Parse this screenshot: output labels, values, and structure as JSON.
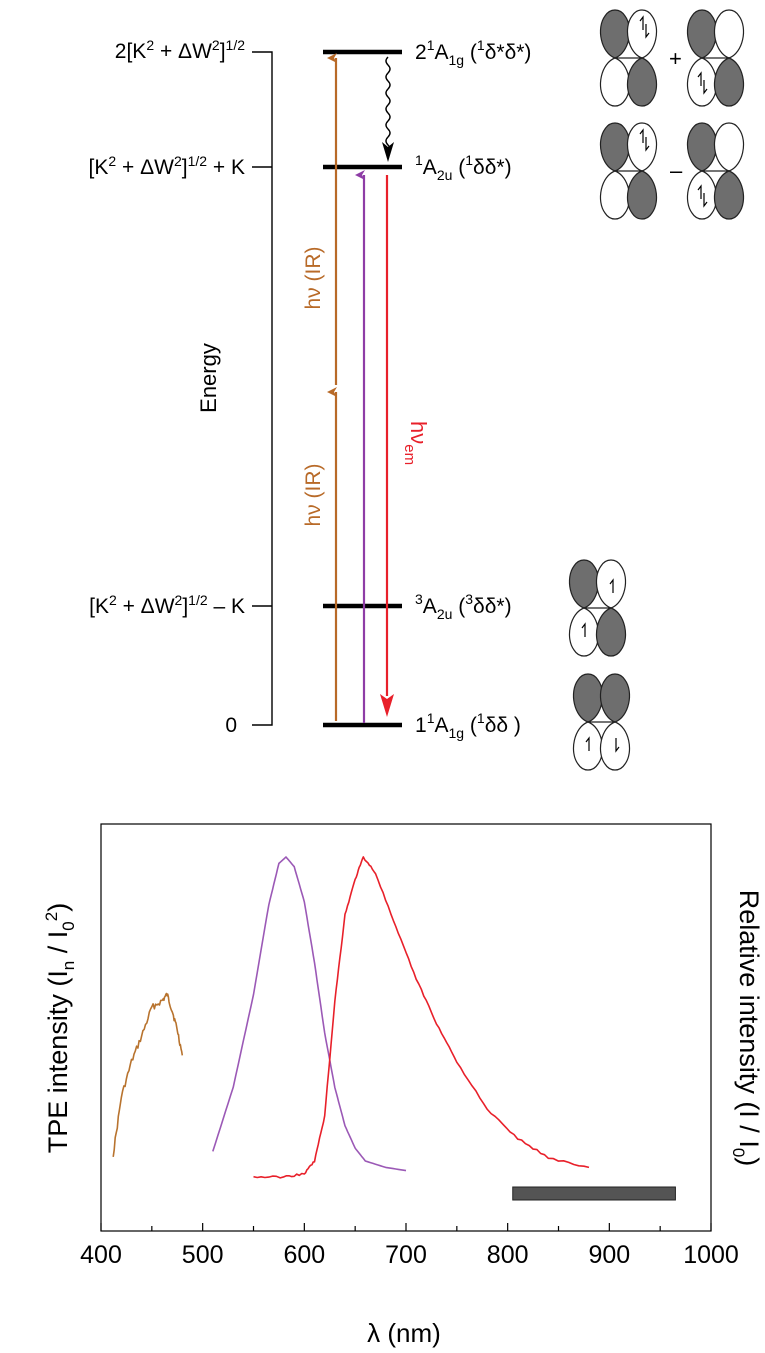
{
  "diagram": {
    "axis_label": "Energy",
    "energy_labels": [
      {
        "id": "e0",
        "text": "2[K² + ΔW²]¹ᐟ²"
      },
      {
        "id": "e1",
        "text": "[K² + ΔW²]¹ᐟ² + K"
      },
      {
        "id": "e2",
        "text": "[K² + ΔW²]¹ᐟ² – K"
      },
      {
        "id": "e3",
        "text": "0"
      }
    ],
    "states": [
      {
        "pre": "2",
        "sup1": "1",
        "main": "A",
        "sub": "1g",
        "open": " (",
        "sup2": "1",
        "config": "δ*δ*)"
      },
      {
        "pre": "",
        "sup1": "1",
        "main": "A",
        "sub": "2u",
        "open": " (",
        "sup2": "1",
        "config": "δδ*)"
      },
      {
        "pre": "",
        "sup1": "3",
        "main": "A",
        "sub": "2u",
        "open": " (",
        "sup2": "3",
        "config": "δδ*)"
      },
      {
        "pre": "1",
        "sup1": "1",
        "main": "A",
        "sub": "1g",
        "open": " (",
        "sup2": "1",
        "config": "δδ )"
      }
    ],
    "excitation_label": "hν (IR)",
    "emission_label_main": "hν",
    "emission_label_sub": "em",
    "operators": {
      "plus": "+",
      "minus": "–"
    },
    "colors": {
      "ir": "#b86a28",
      "absorption": "#8e3da6",
      "emission": "#e8202a",
      "level": "#000000"
    }
  },
  "chart_data": {
    "type": "line",
    "xlabel": "λ (nm)",
    "ylabel_left": "TPE intensity (Iₙ / I₀²)",
    "ylabel_right": "Relative intensity (I / I₀)",
    "xlim": [
      400,
      1000
    ],
    "ylim": [
      0,
      1.0
    ],
    "x_ticks": [
      400,
      500,
      600,
      700,
      800,
      900,
      1000
    ],
    "series": [
      {
        "color": "#b8732e",
        "x": [
          412,
          420,
          430,
          440,
          450,
          460,
          465,
          470,
          475,
          480
        ],
        "y": [
          0.07,
          0.25,
          0.36,
          0.44,
          0.53,
          0.55,
          0.57,
          0.52,
          0.46,
          0.38
        ]
      },
      {
        "color": "#9b59b6",
        "x": [
          510,
          530,
          550,
          565,
          575,
          582,
          590,
          600,
          610,
          620,
          630,
          640,
          650,
          660,
          680,
          700
        ],
        "y": [
          0.08,
          0.28,
          0.57,
          0.85,
          0.98,
          1.0,
          0.97,
          0.86,
          0.67,
          0.45,
          0.28,
          0.16,
          0.09,
          0.05,
          0.03,
          0.02
        ]
      },
      {
        "color": "#e8202a",
        "x": [
          550,
          580,
          600,
          610,
          620,
          630,
          640,
          650,
          658,
          670,
          690,
          710,
          730,
          750,
          780,
          810,
          840,
          880
        ],
        "y": [
          0.0,
          0.0,
          0.01,
          0.05,
          0.19,
          0.55,
          0.82,
          0.93,
          1.0,
          0.95,
          0.78,
          0.62,
          0.48,
          0.36,
          0.21,
          0.12,
          0.06,
          0.03
        ]
      }
    ],
    "bar": {
      "x_start": 805,
      "x_end": 965,
      "color": "#545454"
    }
  }
}
